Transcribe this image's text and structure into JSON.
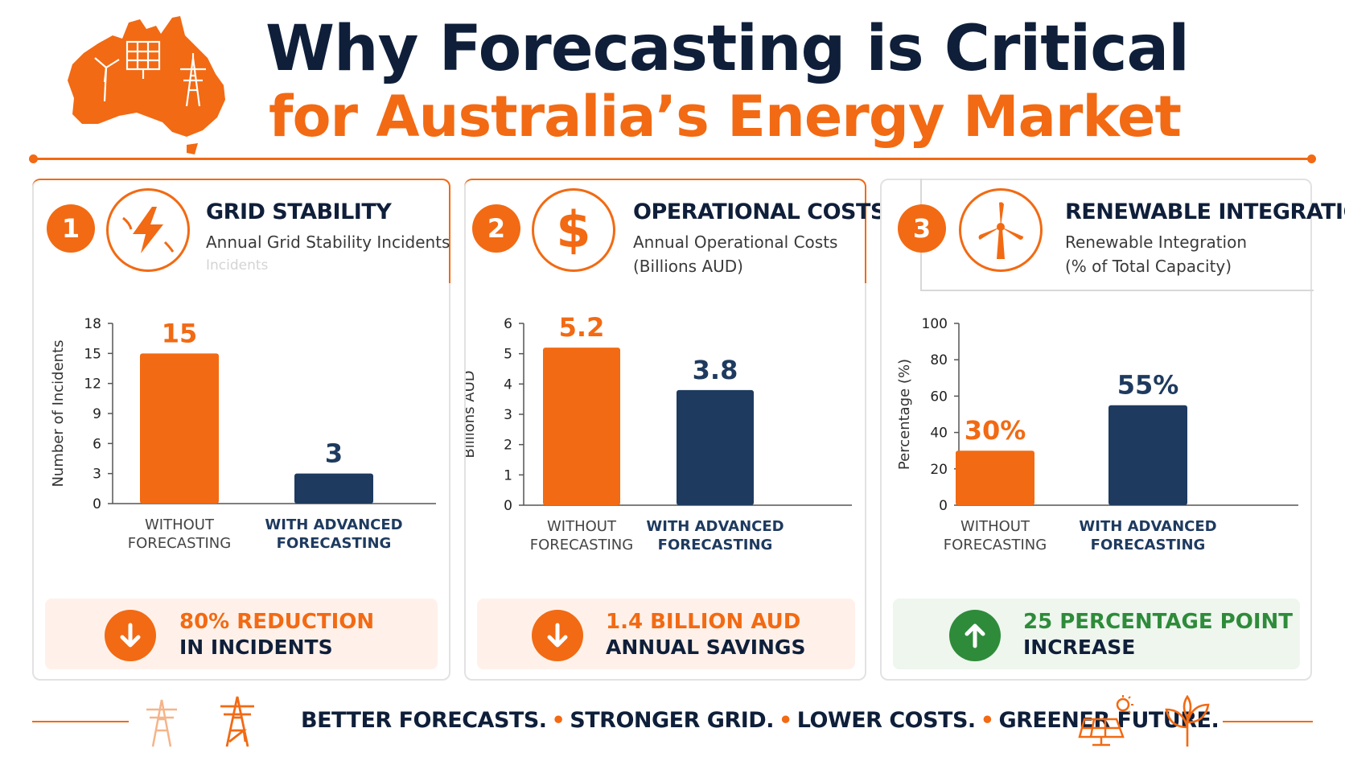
{
  "header": {
    "title_line1": "Why Forecasting is Critical",
    "title_line2": "for Australia’s Energy Market"
  },
  "colors": {
    "orange": "#f26a13",
    "navy": "#1e3a5f",
    "green": "#2e8b3a",
    "dark_text": "#0f1f3a"
  },
  "panels": [
    {
      "number": "1",
      "title": "GRID STABILITY",
      "subtitle1": "Annual Grid Stability Incidents",
      "subtitle2": "",
      "ghost": "Incidents",
      "icon": "lightning-bolt-icon",
      "summary": {
        "line1": "80% REDUCTION",
        "line2": "IN INCIDENTS",
        "icon": "arrow-down-icon"
      }
    },
    {
      "number": "2",
      "title": "OPERATIONAL COSTS",
      "subtitle1": "Annual Operational Costs",
      "subtitle2": "(Billions AUD)",
      "icon": "dollar-sign-icon",
      "summary": {
        "line1": "1.4 BILLION AUD",
        "line2": "ANNUAL SAVINGS",
        "icon": "arrow-down-icon"
      }
    },
    {
      "number": "3",
      "title": "RENEWABLE INTEGRATION",
      "subtitle1": "Renewable Integration",
      "subtitle2": "(% of Total Capacity)",
      "icon": "wind-turbine-icon",
      "summary": {
        "line1": "25 PERCENTAGE POINT",
        "line2": "INCREASE",
        "icon": "arrow-up-icon"
      }
    }
  ],
  "chart_data": [
    {
      "type": "bar",
      "title": "Annual Grid Stability Incidents",
      "ylabel": "Number of Incidents",
      "ylim": [
        0,
        18
      ],
      "yticks": [
        0,
        3,
        6,
        9,
        12,
        15,
        18
      ],
      "categories": [
        [
          "WITHOUT",
          "FORECASTING"
        ],
        [
          "WITH ADVANCED",
          "FORECASTING"
        ]
      ],
      "values": [
        15,
        3
      ],
      "labels": [
        "15",
        "3"
      ],
      "colors": [
        "#f26a13",
        "#1e3a5f"
      ],
      "grid": false
    },
    {
      "type": "bar",
      "title": "Annual Operational Costs (Billions AUD)",
      "ylabel": "Billions AUD",
      "ylim": [
        0,
        6
      ],
      "yticks": [
        0,
        1,
        2,
        3,
        4,
        5,
        6
      ],
      "categories": [
        [
          "WITHOUT",
          "FORECASTING"
        ],
        [
          "WITH ADVANCED",
          "FORECASTING"
        ]
      ],
      "values": [
        5.2,
        3.8
      ],
      "labels": [
        "5.2",
        "3.8"
      ],
      "colors": [
        "#f26a13",
        "#1e3a5f"
      ],
      "grid": false
    },
    {
      "type": "bar",
      "title": "Renewable Integration (% of Total Capacity)",
      "ylabel": "Percentage (%)",
      "ylim": [
        0,
        100
      ],
      "yticks": [
        0,
        20,
        40,
        60,
        80,
        100
      ],
      "categories": [
        [
          "WITHOUT",
          "FORECASTING"
        ],
        [
          "WITH ADVANCED",
          "FORECASTING"
        ]
      ],
      "values": [
        30,
        55
      ],
      "labels": [
        "30%",
        "55%"
      ],
      "colors": [
        "#f26a13",
        "#1e3a5f"
      ],
      "grid": false
    }
  ],
  "footer": {
    "taglines": [
      "BETTER FORECASTS.",
      "STRONGER GRID.",
      "LOWER COSTS.",
      "GREENER FUTURE."
    ]
  }
}
